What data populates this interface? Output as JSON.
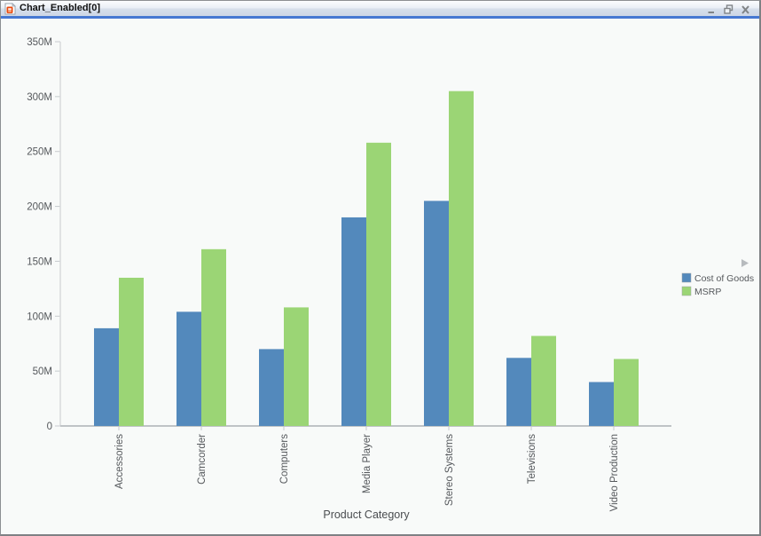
{
  "window": {
    "title": "Chart_Enabled[0]"
  },
  "icons": {
    "titlebar_icon": "chart-procedure-document-icon",
    "minimize": "–",
    "restore": "❐",
    "close": "✕",
    "legend_expand_arrow": "▶"
  },
  "colors": {
    "titlebar_accent": "#4678D2",
    "series_cost_of_goods": "#5389BC",
    "series_msrp": "#9BD575",
    "axis_line": "#C7CBCE",
    "tick_text": "#55585C",
    "content_background": "#F8FAF9",
    "window_control_gray": "#808487"
  },
  "chart_data": {
    "type": "bar",
    "title": "",
    "categories": [
      "Accessories",
      "Camcorder",
      "Computers",
      "Media Player",
      "Stereo Systems",
      "Televisions",
      "Video Production"
    ],
    "series": [
      {
        "name": "Cost of Goods",
        "color": "#5389BC",
        "values": [
          89,
          104,
          70,
          190,
          205,
          62,
          40
        ]
      },
      {
        "name": "MSRP",
        "color": "#9BD575",
        "values": [
          135,
          161,
          108,
          258,
          305,
          82,
          61
        ]
      }
    ],
    "values_unit": "millions",
    "xlabel": "Product Category",
    "ylabel": "",
    "ylim": [
      0,
      350
    ],
    "ytick_interval": 50,
    "ytick_labels": [
      "0",
      "50M",
      "100M",
      "150M",
      "200M",
      "250M",
      "300M",
      "350M"
    ],
    "grid": false,
    "legend_position": "right"
  }
}
